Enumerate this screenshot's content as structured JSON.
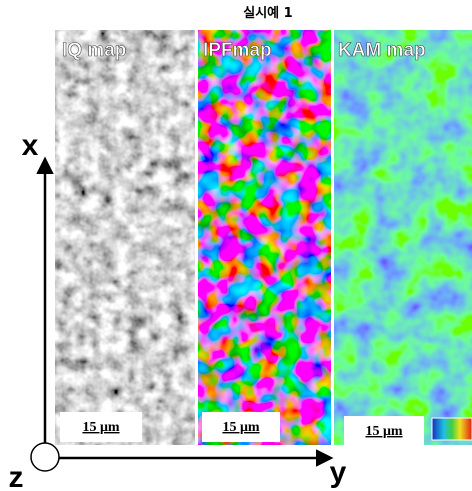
{
  "title": "실시예 1",
  "panels": [
    {
      "label": "IQ map",
      "scale_bar": "15 μm"
    },
    {
      "label": "IPFmap",
      "scale_bar": "15 μm"
    },
    {
      "label": "KAM map",
      "scale_bar": "15 μm"
    }
  ],
  "axes": {
    "x": "x",
    "y": "y",
    "z": "z"
  }
}
